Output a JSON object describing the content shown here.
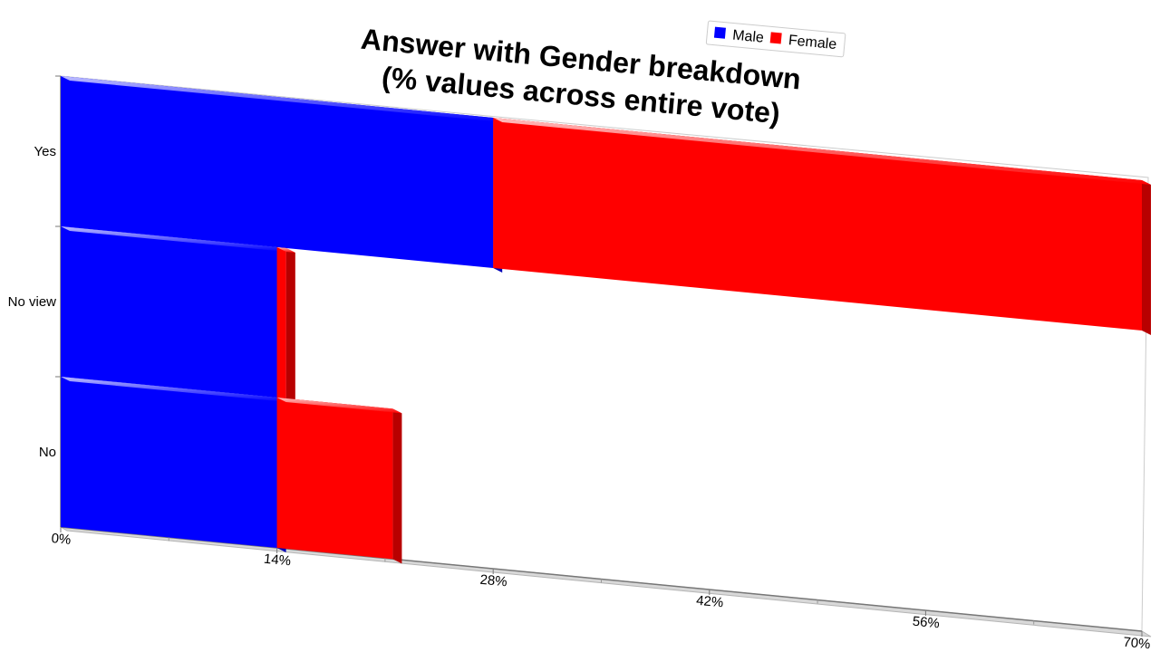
{
  "chart_data": {
    "type": "bar",
    "orientation": "horizontal",
    "stacked": true,
    "three_d": true,
    "title_lines": [
      "Answer with Gender breakdown",
      "(% values across entire vote)"
    ],
    "categories": [
      "Yes",
      "No view",
      "No"
    ],
    "series": [
      {
        "name": "Male",
        "color": "#0000ff",
        "values": [
          28,
          14,
          14
        ]
      },
      {
        "name": "Female",
        "color": "#ff0000",
        "values": [
          42,
          0.6,
          7.5
        ]
      }
    ],
    "xticks": [
      0,
      14,
      28,
      42,
      56,
      70
    ],
    "xtick_labels": [
      "0%",
      "14%",
      "28%",
      "42%",
      "56%",
      "70%"
    ],
    "xlim": [
      0,
      70
    ],
    "legend_position": "top-right",
    "grid": false
  }
}
